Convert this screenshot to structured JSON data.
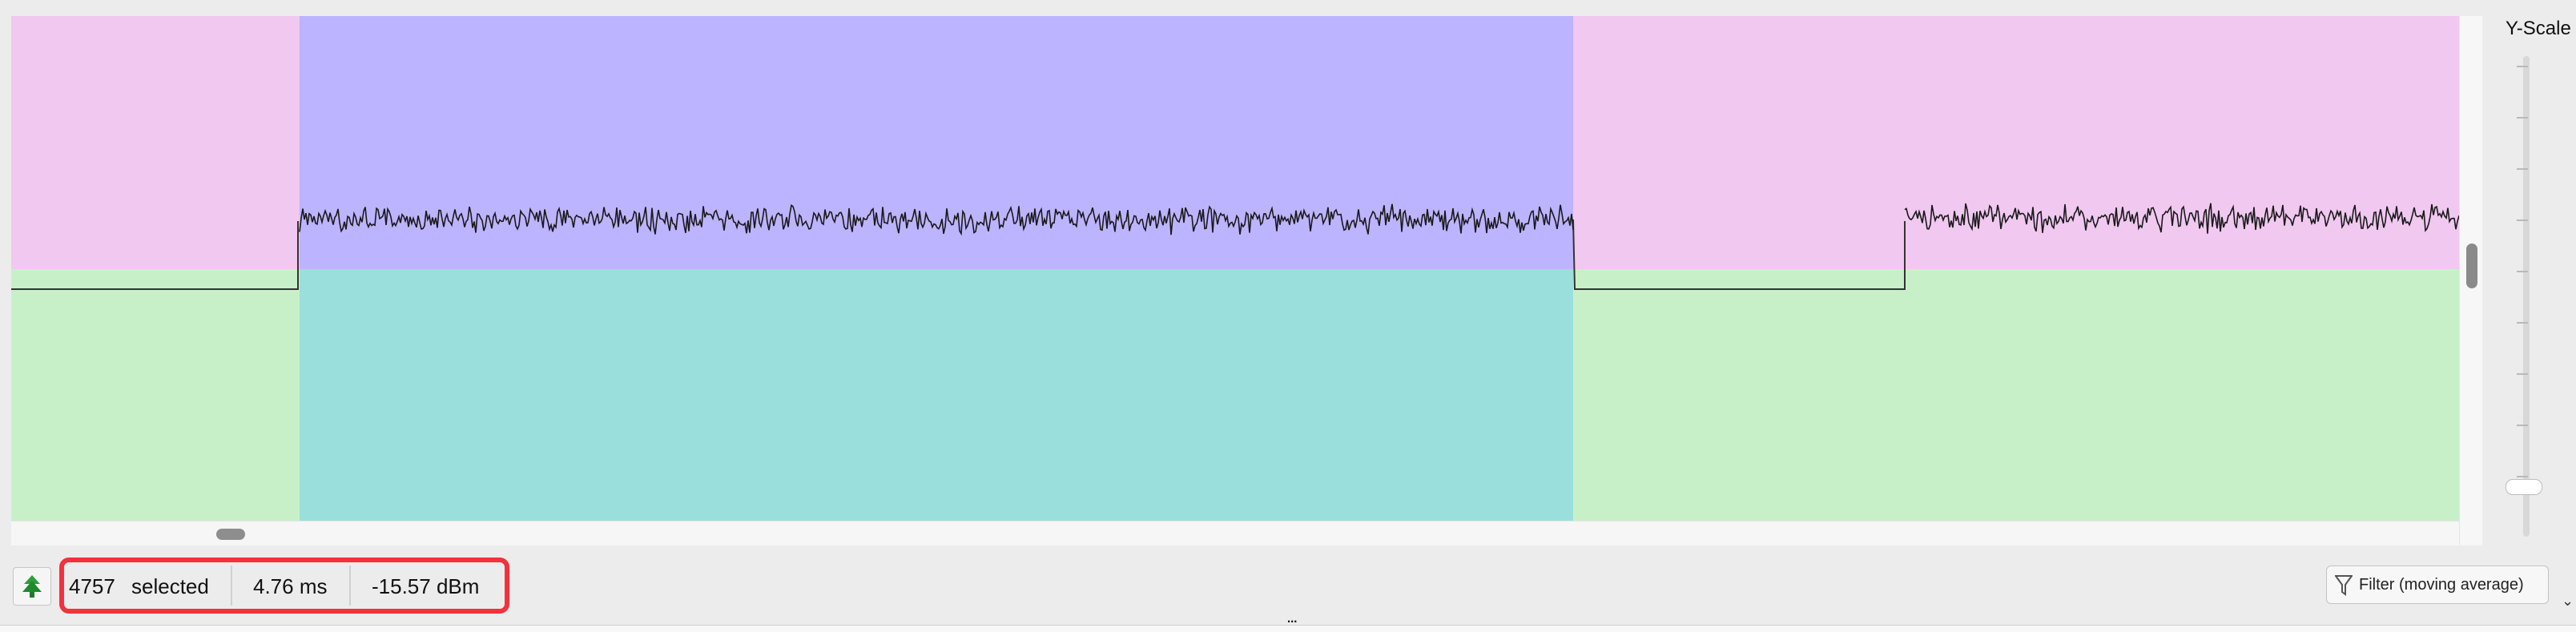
{
  "plot": {
    "regions": {
      "colors": {
        "top_left": "#f0c8f0",
        "top_mid": "#bcb4ff",
        "top_right": "#f0c8f0",
        "bottom_left": "#c8f0c8",
        "bottom_mid": "#9ad f dc",
        "bottom_right": "#c8f0c8"
      }
    },
    "trace_color": "#1a1a1a",
    "baseline_color": "#333333",
    "segments": [
      {
        "state": "low"
      },
      {
        "state": "noisy"
      },
      {
        "state": "low"
      },
      {
        "state": "noisy"
      }
    ]
  },
  "y_scale": {
    "label": "Y-Scale"
  },
  "status": {
    "count": "4757",
    "selected_label": "selected",
    "duration": "4.76 ms",
    "power": "-15.57 dBm",
    "highlight_color": "#f2323c"
  },
  "toolbar": {
    "tree_icon": "tree-icon",
    "filter_label": "Filter (moving average)",
    "filter_icon": "funnel-icon",
    "splitter": "..."
  }
}
